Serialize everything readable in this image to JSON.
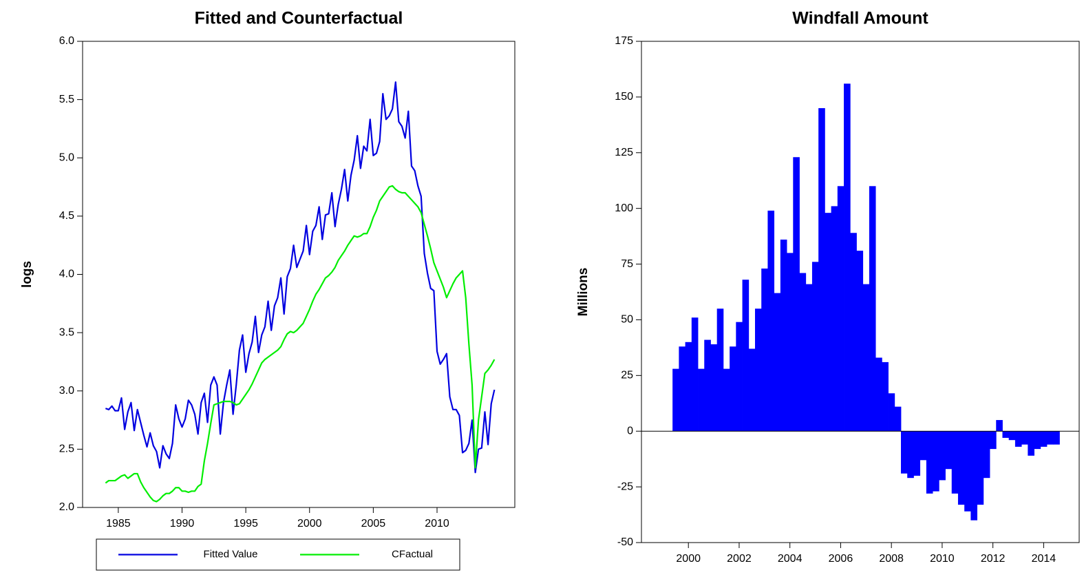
{
  "chart_data": [
    {
      "type": "line",
      "title": "Fitted and Counterfactual",
      "ylabel": "logs",
      "x": [
        1984,
        1984.25,
        1984.5,
        1984.75,
        1985,
        1985.25,
        1985.5,
        1985.75,
        1986,
        1986.25,
        1986.5,
        1986.75,
        1987,
        1987.25,
        1987.5,
        1987.75,
        1988,
        1988.25,
        1988.5,
        1988.75,
        1989,
        1989.25,
        1989.5,
        1989.75,
        1990,
        1990.25,
        1990.5,
        1990.75,
        1991,
        1991.25,
        1991.5,
        1991.75,
        1992,
        1992.25,
        1992.5,
        1992.75,
        1993,
        1993.25,
        1993.5,
        1993.75,
        1994,
        1994.25,
        1994.5,
        1994.75,
        1995,
        1995.25,
        1995.5,
        1995.75,
        1996,
        1996.25,
        1996.5,
        1996.75,
        1997,
        1997.25,
        1997.5,
        1997.75,
        1998,
        1998.25,
        1998.5,
        1998.75,
        1999,
        1999.25,
        1999.5,
        1999.75,
        2000,
        2000.25,
        2000.5,
        2000.75,
        2001,
        2001.25,
        2001.5,
        2001.75,
        2002,
        2002.25,
        2002.5,
        2002.75,
        2003,
        2003.25,
        2003.5,
        2003.75,
        2004,
        2004.25,
        2004.5,
        2004.75,
        2005,
        2005.25,
        2005.5,
        2005.75,
        2006,
        2006.25,
        2006.5,
        2006.75,
        2007,
        2007.25,
        2007.5,
        2007.75,
        2008,
        2008.25,
        2008.5,
        2008.75,
        2009,
        2009.25,
        2009.5,
        2009.75,
        2010,
        2010.25,
        2010.5,
        2010.75,
        2011,
        2011.25,
        2011.5,
        2011.75,
        2012,
        2012.25,
        2012.5,
        2012.75,
        2013,
        2013.25,
        2013.5,
        2013.75,
        2014,
        2014.25,
        2014.5
      ],
      "series": [
        {
          "name": "Fitted Value",
          "color": "#0000e0",
          "values": [
            2.85,
            2.84,
            2.87,
            2.83,
            2.83,
            2.94,
            2.67,
            2.82,
            2.9,
            2.66,
            2.84,
            2.73,
            2.62,
            2.52,
            2.64,
            2.53,
            2.48,
            2.34,
            2.53,
            2.46,
            2.42,
            2.55,
            2.88,
            2.76,
            2.69,
            2.76,
            2.92,
            2.88,
            2.8,
            2.63,
            2.9,
            2.98,
            2.73,
            3.05,
            3.12,
            3.05,
            2.63,
            2.9,
            3.05,
            3.18,
            2.8,
            3.05,
            3.35,
            3.48,
            3.16,
            3.32,
            3.42,
            3.64,
            3.33,
            3.48,
            3.55,
            3.77,
            3.52,
            3.73,
            3.8,
            3.97,
            3.66,
            3.98,
            4.05,
            4.25,
            4.06,
            4.13,
            4.2,
            4.42,
            4.17,
            4.37,
            4.42,
            4.58,
            4.3,
            4.51,
            4.52,
            4.7,
            4.41,
            4.6,
            4.73,
            4.9,
            4.63,
            4.85,
            4.98,
            5.19,
            4.91,
            5.1,
            5.06,
            5.33,
            5.02,
            5.04,
            5.14,
            5.55,
            5.33,
            5.36,
            5.42,
            5.65,
            5.31,
            5.27,
            5.17,
            5.4,
            4.93,
            4.89,
            4.76,
            4.67,
            4.18,
            4.01,
            3.88,
            3.86,
            3.34,
            3.23,
            3.27,
            3.32,
            2.95,
            2.84,
            2.84,
            2.79,
            2.47,
            2.49,
            2.55,
            2.75,
            2.3,
            2.5,
            2.51,
            2.82,
            2.54,
            2.89,
            3.01
          ]
        },
        {
          "name": "CFactual",
          "color": "#00ee00",
          "values": [
            2.21,
            2.23,
            2.23,
            2.23,
            2.25,
            2.27,
            2.28,
            2.25,
            2.27,
            2.29,
            2.29,
            2.22,
            2.17,
            2.13,
            2.09,
            2.06,
            2.05,
            2.07,
            2.1,
            2.12,
            2.12,
            2.14,
            2.17,
            2.17,
            2.14,
            2.14,
            2.13,
            2.14,
            2.14,
            2.18,
            2.2,
            2.4,
            2.55,
            2.72,
            2.88,
            2.89,
            2.9,
            2.91,
            2.91,
            2.91,
            2.9,
            2.88,
            2.89,
            2.93,
            2.97,
            3.01,
            3.06,
            3.12,
            3.18,
            3.24,
            3.27,
            3.29,
            3.31,
            3.33,
            3.35,
            3.38,
            3.44,
            3.49,
            3.51,
            3.5,
            3.52,
            3.55,
            3.58,
            3.64,
            3.7,
            3.77,
            3.83,
            3.87,
            3.92,
            3.97,
            3.99,
            4.02,
            4.06,
            4.12,
            4.16,
            4.2,
            4.25,
            4.29,
            4.33,
            4.32,
            4.33,
            4.35,
            4.35,
            4.41,
            4.49,
            4.55,
            4.63,
            4.67,
            4.71,
            4.75,
            4.76,
            4.73,
            4.71,
            4.7,
            4.7,
            4.67,
            4.64,
            4.61,
            4.58,
            4.53,
            4.43,
            4.33,
            4.22,
            4.1,
            4.03,
            3.96,
            3.89,
            3.8,
            3.86,
            3.92,
            3.97,
            4.0,
            4.03,
            3.8,
            3.4,
            3.05,
            2.34,
            2.75,
            2.95,
            3.15,
            3.18,
            3.22,
            3.27
          ]
        }
      ],
      "xlim": [
        1982.2,
        2016.1
      ],
      "xticks": [
        1985,
        1990,
        1995,
        2000,
        2005,
        2010
      ],
      "ylim": [
        2,
        6
      ],
      "yticks": [
        {
          "value": 2,
          "label": "2.0"
        },
        2.5,
        {
          "value": 3,
          "label": "3.0"
        },
        3.5,
        {
          "value": 4,
          "label": "4.0"
        },
        4.5,
        {
          "value": 5,
          "label": "5.0"
        },
        5.5,
        {
          "value": 6,
          "label": "6.0"
        }
      ],
      "legend": "bottom"
    },
    {
      "type": "bar",
      "title": "Windfall Amount",
      "ylabel": "Millions",
      "color": "#0000ff",
      "x": [
        1999.5,
        1999.75,
        2000,
        2000.25,
        2000.5,
        2000.75,
        2001,
        2001.25,
        2001.5,
        2001.75,
        2002,
        2002.25,
        2002.5,
        2002.75,
        2003,
        2003.25,
        2003.5,
        2003.75,
        2004,
        2004.25,
        2004.5,
        2004.75,
        2005,
        2005.25,
        2005.5,
        2005.75,
        2006,
        2006.25,
        2006.5,
        2006.75,
        2007,
        2007.25,
        2007.5,
        2007.75,
        2008,
        2008.25,
        2008.5,
        2008.75,
        2009,
        2009.25,
        2009.5,
        2009.75,
        2010,
        2010.25,
        2010.5,
        2010.75,
        2011,
        2011.25,
        2011.5,
        2011.75,
        2012,
        2012.25,
        2012.5,
        2012.75,
        2013,
        2013.25,
        2013.5,
        2013.75,
        2014,
        2014.25,
        2014.5
      ],
      "values": [
        28,
        38,
        40,
        51,
        28,
        41,
        39,
        55,
        28,
        38,
        49,
        68,
        37,
        55,
        73,
        99,
        62,
        86,
        80,
        123,
        71,
        66,
        76,
        145,
        98,
        101,
        110,
        156,
        89,
        81,
        66,
        110,
        33,
        31,
        17,
        11,
        -19,
        -21,
        -20,
        -13,
        -28,
        -27,
        -22,
        -17,
        -28,
        -33,
        -36,
        -40,
        -33,
        -21,
        -8,
        5,
        -3,
        -4,
        -7,
        -6,
        -11,
        -8,
        -7,
        -6,
        -6
      ],
      "xlim": [
        1998.15,
        2015.4
      ],
      "xticks": [
        2000,
        2002,
        2004,
        2006,
        2008,
        2010,
        2012,
        2014
      ],
      "ylim": [
        -50,
        175
      ],
      "yticks": [
        -50,
        -25,
        0,
        25,
        50,
        75,
        100,
        125,
        150,
        175
      ]
    }
  ]
}
